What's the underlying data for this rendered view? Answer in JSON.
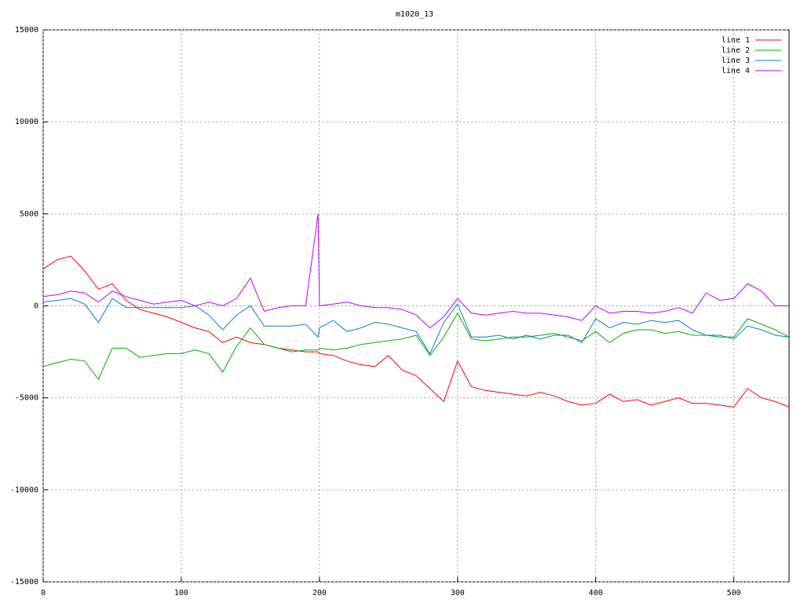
{
  "chart_data": {
    "type": "line",
    "title": "m1020_13",
    "x": [
      0,
      10,
      20,
      30,
      40,
      50,
      60,
      70,
      80,
      90,
      100,
      110,
      120,
      130,
      140,
      150,
      160,
      170,
      180,
      190,
      199,
      200,
      210,
      220,
      230,
      240,
      250,
      260,
      270,
      280,
      290,
      300,
      310,
      320,
      330,
      340,
      350,
      360,
      370,
      380,
      390,
      400,
      410,
      420,
      430,
      440,
      450,
      460,
      470,
      480,
      490,
      500,
      510,
      520,
      530,
      540
    ],
    "series": [
      {
        "name": "line 1",
        "color": "#ff0000",
        "values": [
          2000,
          2500,
          2700,
          1900,
          900,
          1200,
          300,
          -200,
          -400,
          -600,
          -900,
          -1200,
          -1400,
          -2000,
          -1700,
          -2000,
          -2100,
          -2300,
          -2400,
          -2500,
          -2500,
          -2600,
          -2700,
          -3000,
          -3200,
          -3300,
          -2700,
          -3500,
          -3800,
          -4500,
          -5200,
          -3000,
          -4400,
          -4600,
          -4700,
          -4800,
          -4900,
          -4700,
          -4900,
          -5200,
          -5400,
          -5300,
          -4800,
          -5200,
          -5100,
          -5400,
          -5200,
          -5000,
          -5300,
          -5300,
          -5400,
          -5500,
          -4500,
          -5000,
          -5200,
          -5500
        ]
      },
      {
        "name": "line 2",
        "color": "#00b000",
        "values": [
          -3300,
          -3100,
          -2900,
          -3000,
          -4000,
          -2300,
          -2300,
          -2800,
          -2700,
          -2600,
          -2600,
          -2400,
          -2600,
          -3600,
          -2200,
          -1200,
          -2100,
          -2300,
          -2500,
          -2400,
          -2400,
          -2300,
          -2400,
          -2300,
          -2100,
          -2000,
          -1900,
          -1800,
          -1600,
          -2700,
          -1700,
          -400,
          -1800,
          -1900,
          -1800,
          -1700,
          -1700,
          -1600,
          -1500,
          -1700,
          -1900,
          -1400,
          -2000,
          -1500,
          -1300,
          -1300,
          -1500,
          -1400,
          -1600,
          -1600,
          -1700,
          -1700,
          -700,
          -1000,
          -1300,
          -1700
        ]
      },
      {
        "name": "line 3",
        "color": "#0080d0",
        "values": [
          200,
          300,
          400,
          100,
          -900,
          400,
          -100,
          -100,
          -100,
          -100,
          -100,
          0,
          -500,
          -1300,
          -500,
          0,
          -1100,
          -1100,
          -1100,
          -1000,
          -1700,
          -1200,
          -800,
          -1400,
          -1200,
          -900,
          -1000,
          -1200,
          -1400,
          -2600,
          -900,
          100,
          -1700,
          -1700,
          -1600,
          -1800,
          -1600,
          -1800,
          -1600,
          -1600,
          -2000,
          -700,
          -1200,
          -900,
          -1000,
          -800,
          -900,
          -800,
          -1300,
          -1600,
          -1600,
          -1800,
          -1100,
          -1300,
          -1600,
          -1700
        ]
      },
      {
        "name": "line 4",
        "color": "#c000ff",
        "values": [
          500,
          600,
          800,
          700,
          200,
          800,
          500,
          300,
          100,
          200,
          300,
          0,
          200,
          0,
          400,
          1500,
          -300,
          -100,
          0,
          0,
          5000,
          0,
          100,
          200,
          0,
          -100,
          -100,
          -200,
          -500,
          -1200,
          -600,
          400,
          -400,
          -500,
          -400,
          -300,
          -400,
          -400,
          -500,
          -600,
          -800,
          0,
          -400,
          -300,
          -300,
          -400,
          -300,
          -100,
          -400,
          700,
          300,
          400,
          1200,
          800,
          0,
          0
        ]
      }
    ],
    "xlim": [
      0,
      540
    ],
    "ylim": [
      -15000,
      15000
    ],
    "xticks": [
      0,
      100,
      200,
      300,
      400,
      500
    ],
    "yticks": [
      -15000,
      -10000,
      -5000,
      0,
      5000,
      10000,
      15000
    ],
    "grid": true,
    "legend": "top-right"
  }
}
